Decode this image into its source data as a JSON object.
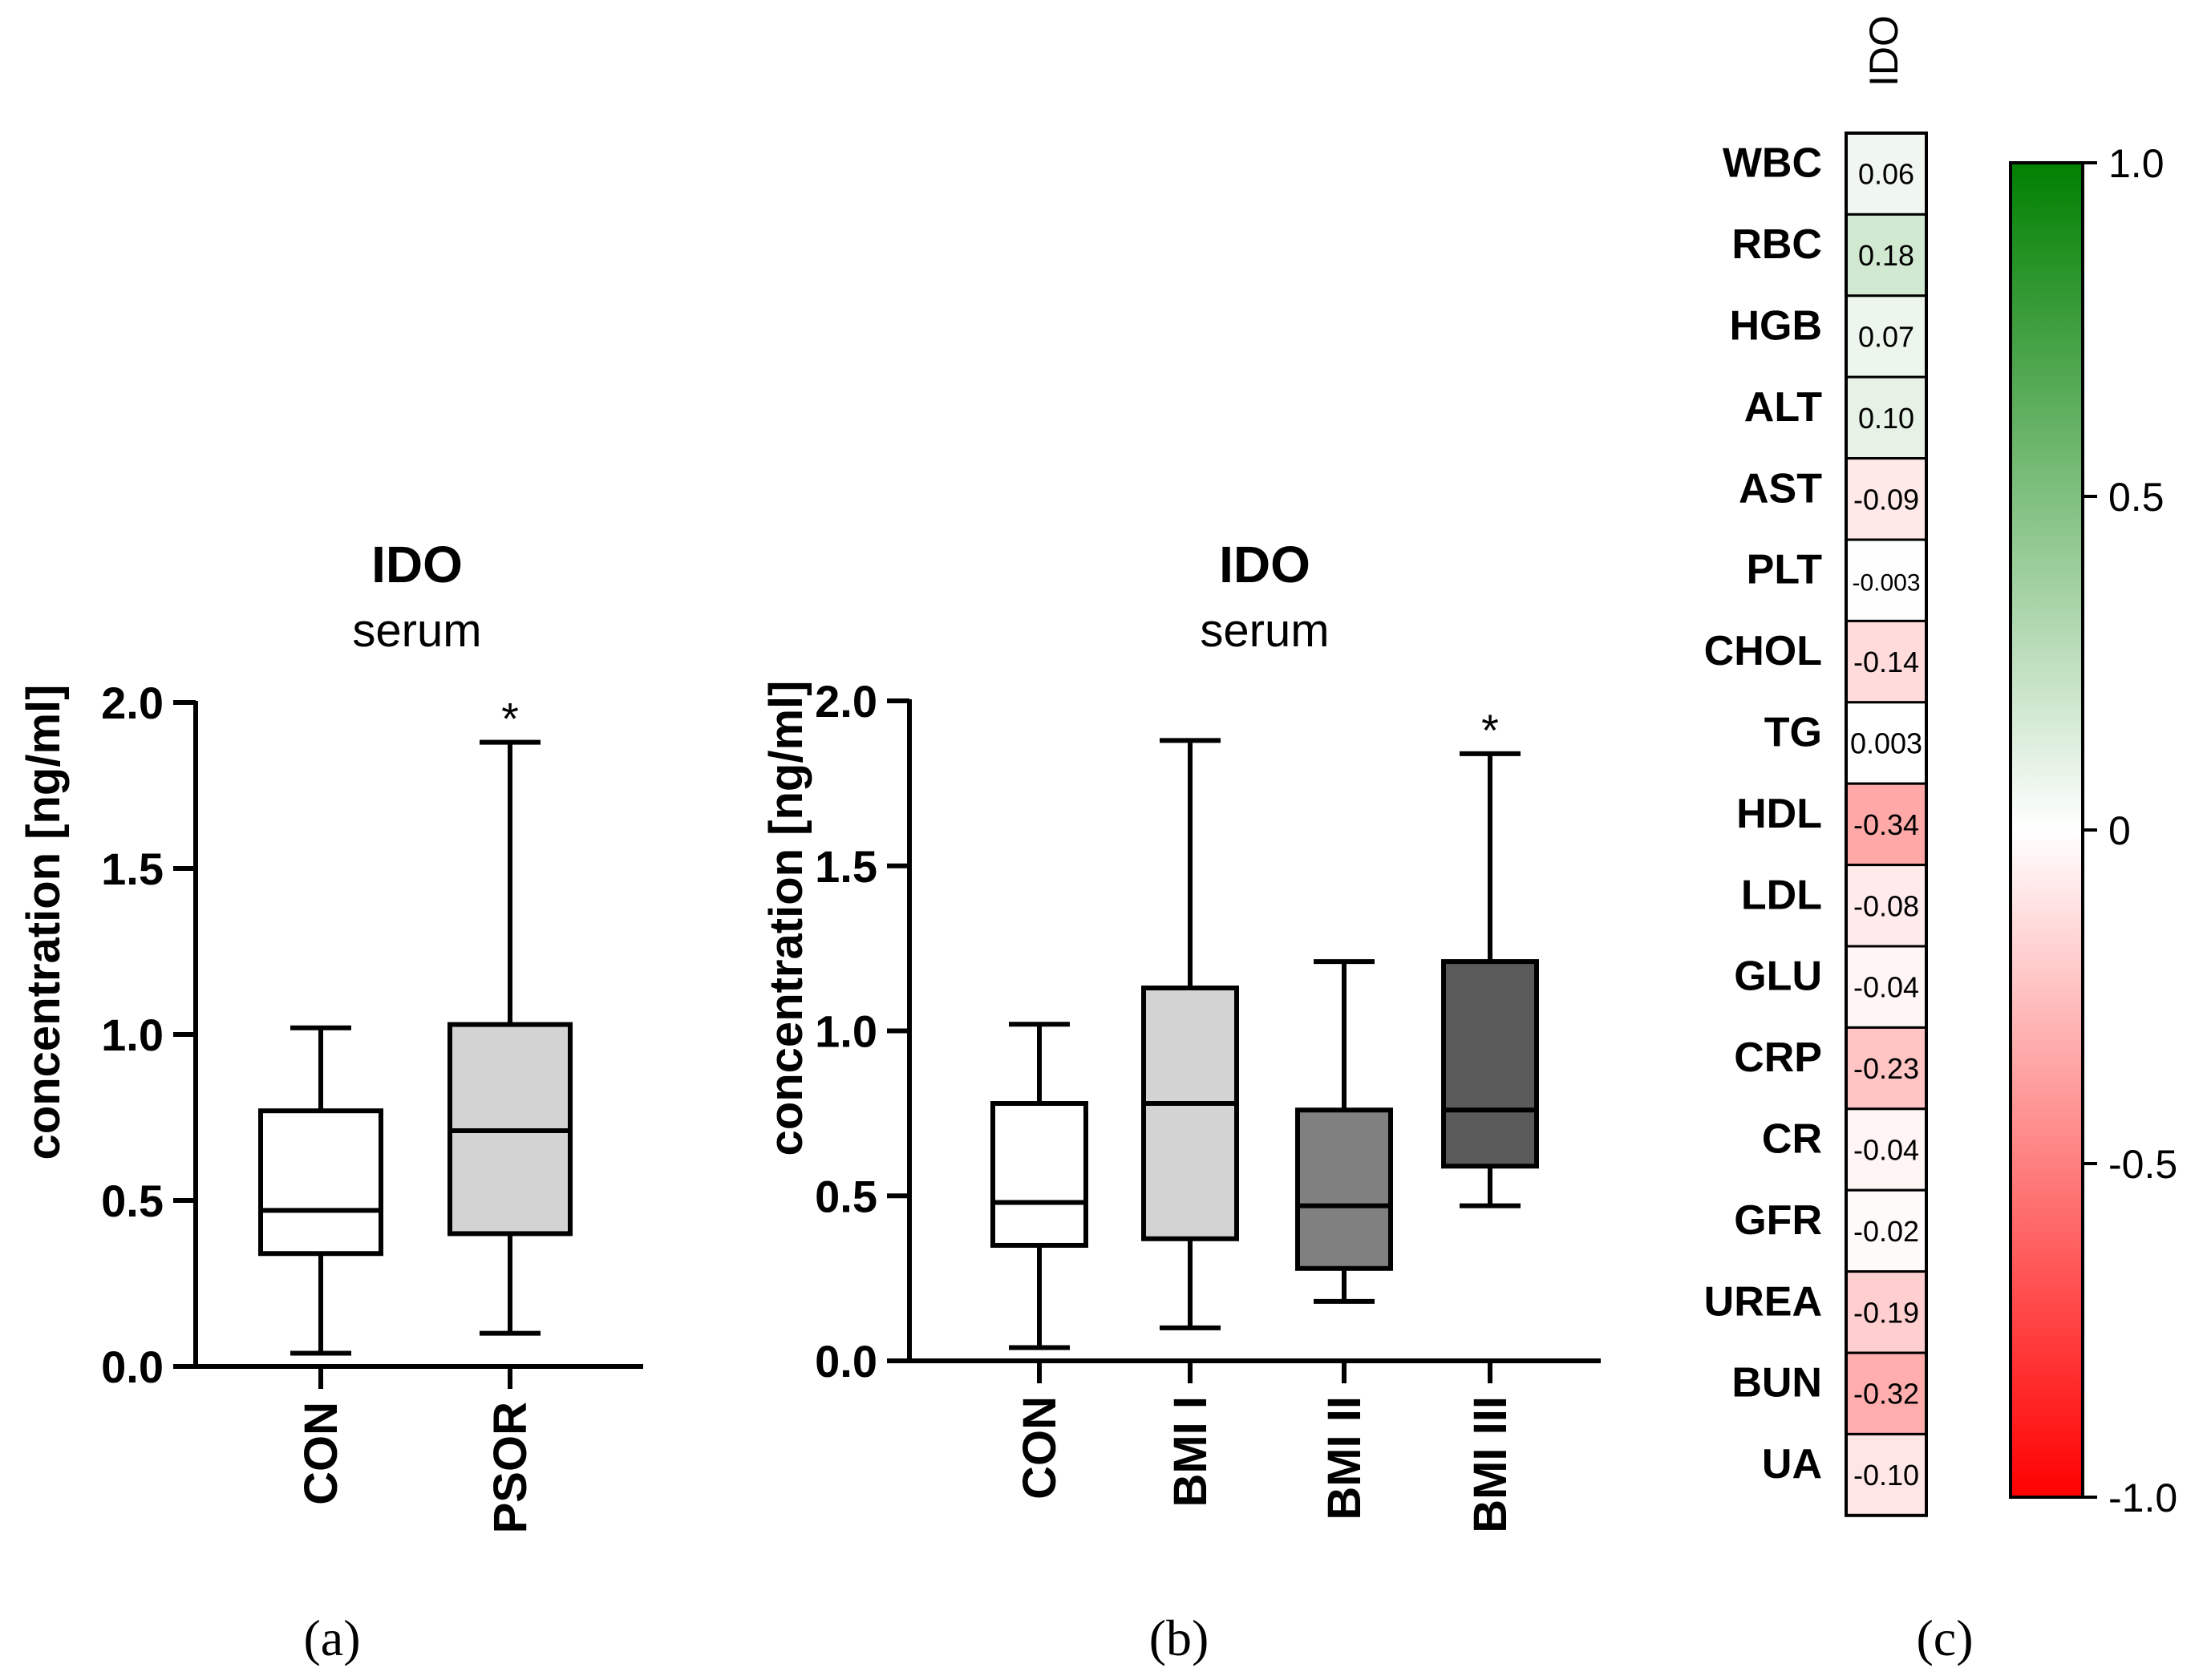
{
  "chart_data": [
    {
      "id": "a",
      "type": "box",
      "panel_label": "(a)",
      "title": "IDO",
      "subtitle": "serum",
      "ylabel": "concentration [ng/ml]",
      "ylim": [
        0,
        2.0
      ],
      "yticks": [
        "0.0",
        "0.5",
        "1.0",
        "1.5",
        "2.0"
      ],
      "categories": [
        "CON",
        "PSOR"
      ],
      "fills": [
        "#ffffff",
        "#d3d3d3"
      ],
      "boxes": [
        {
          "min": 0.04,
          "q1": 0.34,
          "median": 0.47,
          "q3": 0.77,
          "max": 1.02,
          "mark": ""
        },
        {
          "min": 0.1,
          "q1": 0.4,
          "median": 0.71,
          "q3": 1.03,
          "max": 1.88,
          "mark": "*"
        }
      ]
    },
    {
      "id": "b",
      "type": "box",
      "panel_label": "(b)",
      "title": "IDO",
      "subtitle": "serum",
      "ylabel": "concentration [ng/ml]",
      "ylim": [
        0,
        2.0
      ],
      "yticks": [
        "0.0",
        "0.5",
        "1.0",
        "1.5",
        "2.0"
      ],
      "categories": [
        "CON",
        "BMI I",
        "BMI II",
        "BMI III"
      ],
      "fills": [
        "#ffffff",
        "#d3d3d3",
        "#808080",
        "#5a5a5a"
      ],
      "boxes": [
        {
          "min": 0.04,
          "q1": 0.35,
          "median": 0.48,
          "q3": 0.78,
          "max": 1.02,
          "mark": ""
        },
        {
          "min": 0.1,
          "q1": 0.37,
          "median": 0.78,
          "q3": 1.13,
          "max": 1.88,
          "mark": ""
        },
        {
          "min": 0.18,
          "q1": 0.28,
          "median": 0.47,
          "q3": 0.76,
          "max": 1.21,
          "mark": ""
        },
        {
          "min": 0.47,
          "q1": 0.59,
          "median": 0.76,
          "q3": 1.21,
          "max": 1.84,
          "mark": "*"
        }
      ]
    },
    {
      "id": "c",
      "type": "heatmap",
      "panel_label": "(c)",
      "column": "IDO",
      "rows": [
        "WBC",
        "RBC",
        "HGB",
        "ALT",
        "AST",
        "PLT",
        "CHOL",
        "TG",
        "HDL",
        "LDL",
        "GLU",
        "CRP",
        "CR",
        "GFR",
        "UREA",
        "BUN",
        "UA"
      ],
      "values": [
        0.06,
        0.18,
        0.07,
        0.1,
        -0.09,
        -0.003,
        -0.14,
        0.003,
        -0.34,
        -0.08,
        -0.04,
        -0.23,
        -0.04,
        -0.02,
        -0.19,
        -0.32,
        -0.1
      ],
      "labels": [
        "0.06",
        "0.18",
        "0.07",
        "0.10",
        "-0.09",
        "-0.003",
        "-0.14",
        "0.003",
        "-0.34",
        "-0.08",
        "-0.04",
        "-0.23",
        "-0.04",
        "-0.02",
        "-0.19",
        "-0.32",
        "-0.10"
      ],
      "colorbar": {
        "range": [
          -1.0,
          1.0
        ],
        "ticks": [
          "1.0",
          "0.5",
          "0",
          "-0.5",
          "-1.0"
        ],
        "positive_color": "#008000",
        "negative_color": "#ff0000",
        "zero_color": "#ffffff"
      }
    }
  ]
}
